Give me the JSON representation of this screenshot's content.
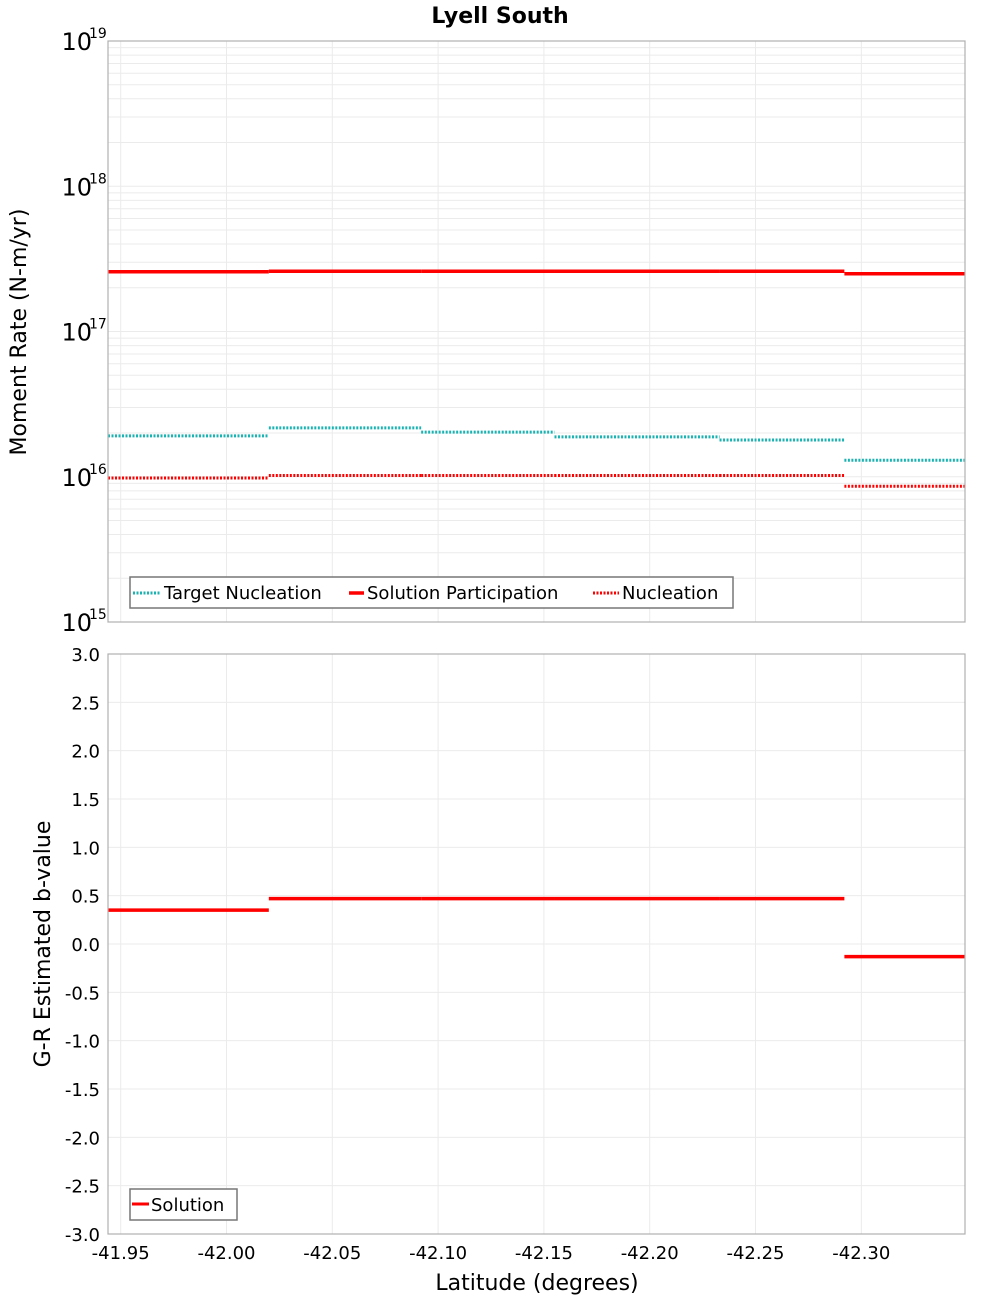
{
  "title": "Lyell South",
  "colors": {
    "target_nucleation": "#1ab3b3",
    "solution": "#ff0000",
    "nucleation": "#ff0000",
    "grid": "#ebebeb",
    "frame": "#b0b0b0"
  },
  "top_panel": {
    "ylabel": "Moment Rate (N-m/yr)",
    "y_ticks": [
      {
        "base": "10",
        "exp": "19"
      },
      {
        "base": "10",
        "exp": "18"
      },
      {
        "base": "10",
        "exp": "17"
      },
      {
        "base": "10",
        "exp": "16"
      },
      {
        "base": "10",
        "exp": "15"
      }
    ],
    "legend": [
      "Target Nucleation",
      "Solution Participation",
      "Nucleation"
    ]
  },
  "bottom_panel": {
    "ylabel": "G-R Estimated b-value",
    "y_ticks": [
      "3.0",
      "2.5",
      "2.0",
      "1.5",
      "1.0",
      "0.5",
      "0.0",
      "-0.5",
      "-1.0",
      "-1.5",
      "-2.0",
      "-2.5",
      "-3.0"
    ],
    "legend": [
      "Solution"
    ]
  },
  "xlabel": "Latitude (degrees)",
  "x_ticks": [
    "-41.95",
    "-42.00",
    "-42.05",
    "-42.10",
    "-42.15",
    "-42.20",
    "-42.25",
    "-42.30"
  ],
  "chart_data": [
    {
      "type": "line",
      "title": "Lyell South",
      "xlabel": "Latitude (degrees)",
      "ylabel": "Moment Rate (N-m/yr)",
      "yscale": "log",
      "ylim": [
        1000000000000000.0,
        1e+19
      ],
      "xlim": [
        -41.944,
        -42.349
      ],
      "grid": true,
      "legend_position": "lower left",
      "segment_edges": [
        -41.944,
        -42.02,
        -42.092,
        -42.155,
        -42.233,
        -42.292,
        -42.349
      ],
      "series": [
        {
          "name": "Target Nucleation",
          "style": "dotted",
          "color": "#1ab3b3",
          "values": [
            1.91e+16,
            2.17e+16,
            2.03e+16,
            1.88e+16,
            1.79e+16,
            1.3e+16
          ]
        },
        {
          "name": "Solution Participation",
          "style": "solid",
          "color": "#ff0000",
          "values": [
            2.58e+17,
            2.6e+17,
            2.6e+17,
            2.6e+17,
            2.6e+17,
            2.5e+17
          ]
        },
        {
          "name": "Nucleation",
          "style": "dotted",
          "color": "#ff0000",
          "values": [
            9800000000000000.0,
            1.02e+16,
            1.02e+16,
            1.02e+16,
            1.02e+16,
            8600000000000000.0
          ]
        }
      ]
    },
    {
      "type": "line",
      "xlabel": "Latitude (degrees)",
      "ylabel": "G-R Estimated b-value",
      "ylim": [
        -3.0,
        3.0
      ],
      "xlim": [
        -41.944,
        -42.349
      ],
      "grid": true,
      "legend_position": "lower left",
      "segment_edges": [
        -41.944,
        -42.02,
        -42.092,
        -42.155,
        -42.233,
        -42.292,
        -42.349
      ],
      "series": [
        {
          "name": "Solution",
          "style": "solid",
          "color": "#ff0000",
          "values": [
            0.35,
            0.47,
            0.47,
            0.47,
            0.47,
            -0.13
          ]
        }
      ]
    }
  ]
}
